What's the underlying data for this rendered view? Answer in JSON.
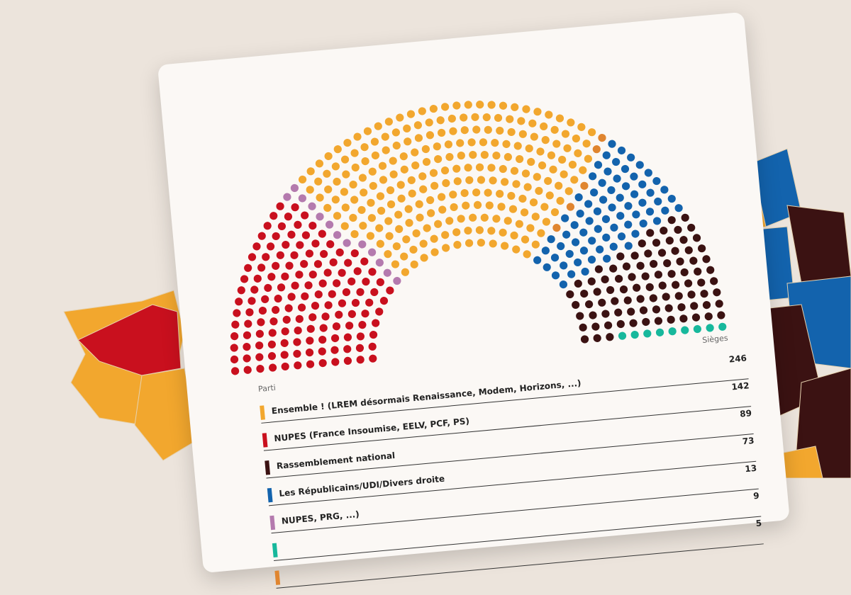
{
  "chart_data": {
    "type": "hemicycle",
    "column_labels": {
      "party": "Parti",
      "seats": "Sièges"
    },
    "series": [
      {
        "name": "Ensemble ! (LREM désormais Renaissance, Modem, Horizons, ...)",
        "color": "#f2a72e",
        "value": 246
      },
      {
        "name": "NUPES (France Insoumise, EELV, PCF, PS)",
        "color": "#c9101e",
        "value": 142
      },
      {
        "name": "Rassemblement national",
        "color": "#3b1212",
        "value": 89
      },
      {
        "name": "Les Républicains/UDI/Divers droite",
        "color": "#1363ad",
        "value": 73
      },
      {
        "name": "NUPES, PRG, ...)",
        "color": "#b47aae",
        "value": 13
      },
      {
        "name": null,
        "color": "#17b89c",
        "value": 9
      },
      {
        "name": null,
        "color": "#e0852f",
        "value": 5
      }
    ]
  }
}
